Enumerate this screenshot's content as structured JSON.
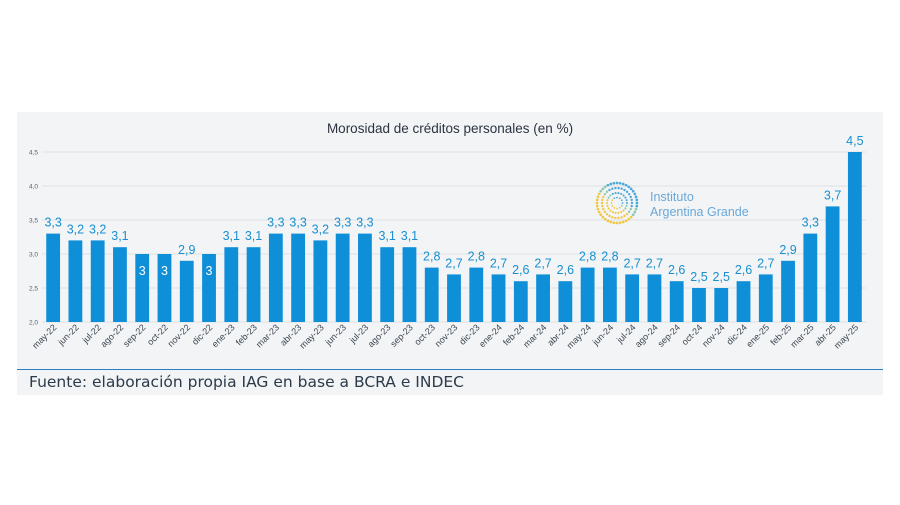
{
  "chart_data": {
    "type": "bar",
    "title": "Morosidad de créditos personales (en %)",
    "categories": [
      "may-22",
      "jun-22",
      "jul-22",
      "ago-22",
      "sep-22",
      "oct-22",
      "nov-22",
      "dic-22",
      "ene-23",
      "feb-23",
      "mar-23",
      "abr-23",
      "may-23",
      "jun-23",
      "jul-23",
      "ago-23",
      "sep-23",
      "oct-23",
      "nov-23",
      "dic-23",
      "ene-24",
      "feb-24",
      "mar-24",
      "abr-24",
      "may-24",
      "jun-24",
      "jul-24",
      "ago-24",
      "sep-24",
      "oct-24",
      "nov-24",
      "dic-24",
      "ene-25",
      "feb-25",
      "mar-25",
      "abr-25",
      "may-25"
    ],
    "values": [
      3.3,
      3.2,
      3.2,
      3.1,
      3.0,
      3.0,
      2.9,
      3.0,
      3.1,
      3.1,
      3.3,
      3.3,
      3.2,
      3.3,
      3.3,
      3.1,
      3.1,
      2.8,
      2.7,
      2.8,
      2.7,
      2.6,
      2.7,
      2.6,
      2.8,
      2.8,
      2.7,
      2.7,
      2.6,
      2.5,
      2.5,
      2.6,
      2.7,
      2.9,
      3.3,
      3.7,
      4.5
    ],
    "data_labels": [
      "3,3",
      "3,2",
      "3,2",
      "3,1",
      "3",
      "3",
      "2,9",
      "3",
      "3,1",
      "3,1",
      "3,3",
      "3,3",
      "3,2",
      "3,3",
      "3,3",
      "3,1",
      "3,1",
      "2,8",
      "2,7",
      "2,8",
      "2,7",
      "2,6",
      "2,7",
      "2,6",
      "2,8",
      "2,8",
      "2,7",
      "2,7",
      "2,6",
      "2,5",
      "2,5",
      "2,6",
      "2,7",
      "2,9",
      "3,3",
      "3,7",
      "4,5"
    ],
    "label_inside": [
      false,
      false,
      false,
      false,
      true,
      true,
      false,
      true,
      false,
      false,
      false,
      false,
      false,
      false,
      false,
      false,
      false,
      false,
      false,
      false,
      false,
      false,
      false,
      false,
      false,
      false,
      false,
      false,
      false,
      false,
      false,
      false,
      false,
      false,
      false,
      false,
      false
    ],
    "yticks": [
      2.0,
      2.5,
      3.0,
      3.5,
      4.0,
      4.5
    ],
    "ytick_labels": [
      "2,0",
      "2,5",
      "3,0",
      "3,5",
      "4,0",
      "4,5"
    ],
    "ylim": [
      2.0,
      4.5
    ],
    "xlabel": "",
    "ylabel": "",
    "grid": true,
    "bar_color": "#0f8fd8",
    "label_color": "#1a8fd0"
  },
  "logo": {
    "line1": "Instituto",
    "line2": "Argentina Grande",
    "color": "#6aa8d8"
  },
  "source": "Fuente: elaboración propia IAG en base a BCRA e INDEC"
}
